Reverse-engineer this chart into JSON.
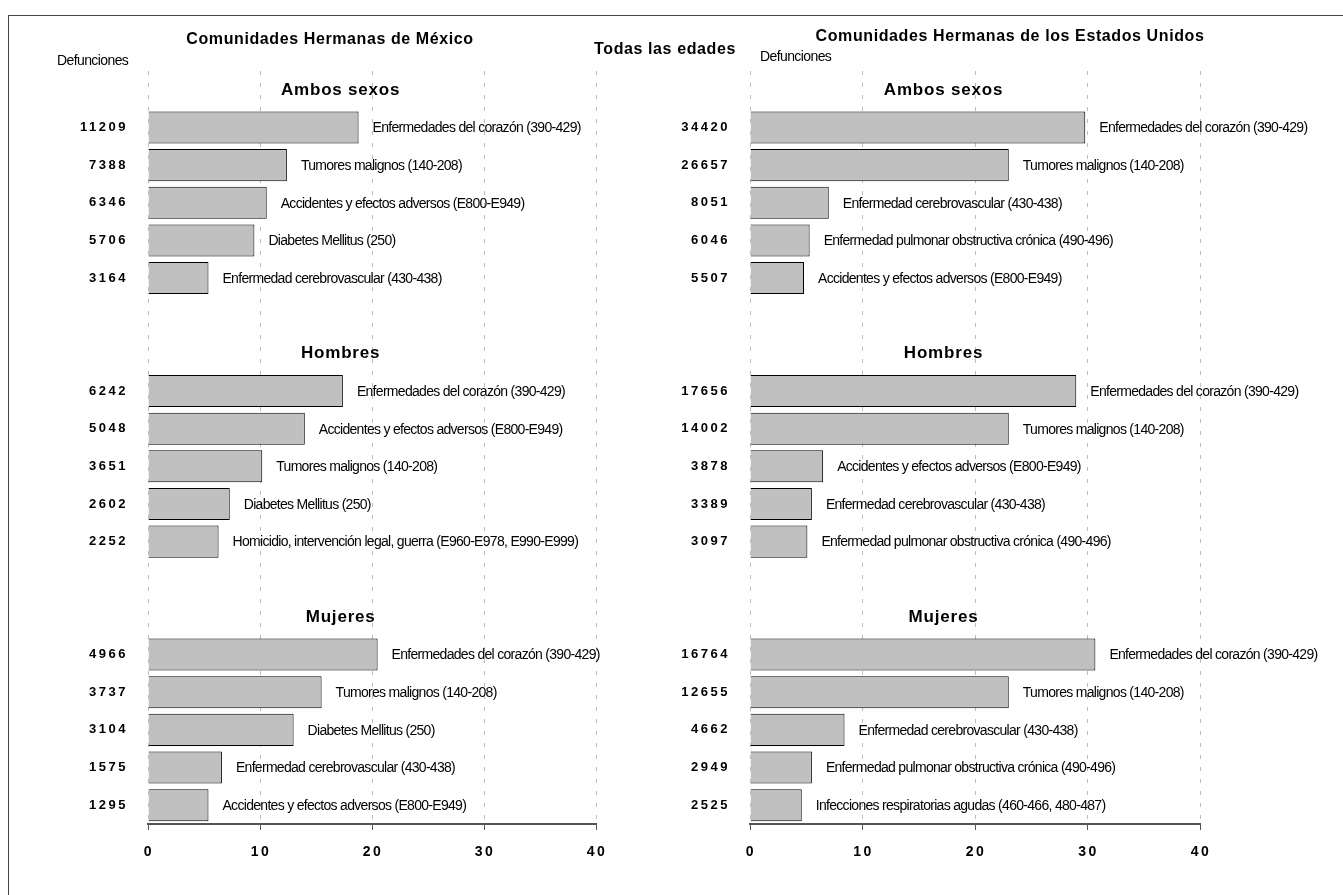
{
  "chart_data": [
    {
      "type": "bar",
      "orientation": "horizontal",
      "title": "Comunidades Hermanas de México",
      "ylabel": "Defunciones",
      "color": "#c0c0c0",
      "xlim": [
        0,
        40
      ],
      "xticks": [
        0,
        10,
        20,
        30,
        40
      ],
      "grid": "x",
      "legend": false,
      "categories": [
        "Ambos sexos",
        "11209",
        "7388",
        "6346",
        "5706",
        "3164",
        null,
        "Hombres",
        "6242",
        "5048",
        "3651",
        "2602",
        "2252",
        null,
        "Mujeres",
        "4966",
        "3737",
        "3104",
        "1575",
        "1295"
      ],
      "values": [
        null,
        18.8,
        12.4,
        10.6,
        9.5,
        5.4,
        null,
        null,
        17.4,
        14.0,
        10.2,
        7.3,
        6.3,
        null,
        null,
        20.5,
        15.5,
        13.0,
        6.6,
        5.4
      ],
      "annotations": [
        "Todas las edades",
        {
          "text": "Enfermedades del corazón (390-429)",
          "x": 18.8,
          "y": "11209"
        },
        {
          "text": "Tumores malignos (140-208)",
          "x": 12.4,
          "y": "7388"
        },
        {
          "text": "Accidentes y efectos adversos (E800-E949)",
          "x": 10.6,
          "y": "6346"
        },
        {
          "text": "Diabetes Mellitus (250)",
          "x": 9.5,
          "y": "5706"
        },
        {
          "text": "Enfermedad cerebrovascular (430-438)",
          "x": 5.4,
          "y": "3164"
        },
        {
          "text": "Enfermedades del corazón (390-429)",
          "x": 17.4,
          "y": "6242"
        },
        {
          "text": "Accidentes y efectos adversos (E800-E949)",
          "x": 14.0,
          "y": "5048"
        },
        {
          "text": "Tumores malignos (140-208)",
          "x": 10.2,
          "y": "3651"
        },
        {
          "text": "Diabetes Mellitus (250)",
          "x": 7.3,
          "y": "2602"
        },
        {
          "text": "Homicidio, intervención legal, guerra (E960-E978, E990-E999)",
          "x": 6.3,
          "y": "2252"
        },
        {
          "text": "Enfermedades del corazón (390-429)",
          "x": 20.5,
          "y": "4966"
        },
        {
          "text": "Tumores malignos (140-208)",
          "x": 15.5,
          "y": "3737"
        },
        {
          "text": "Diabetes Mellitus (250)",
          "x": 13.0,
          "y": "3104"
        },
        {
          "text": "Enfermedad cerebrovascular (430-438)",
          "x": 6.6,
          "y": "1575"
        },
        {
          "text": "Accidentes y efectos adversos (E800-E949)",
          "x": 5.4,
          "y": "1295"
        }
      ]
    },
    {
      "type": "bar",
      "orientation": "horizontal",
      "title": "Comunidades Hermanas de los Estados Unidos",
      "ylabel": "Defunciones",
      "color": "#c0c0c0",
      "xlim": [
        0,
        40
      ],
      "xticks": [
        0,
        10,
        20,
        30,
        40
      ],
      "grid": "x",
      "legend": false,
      "categories": [
        "Ambos sexos",
        "34420",
        "26657",
        "8051",
        "6046",
        "5507",
        null,
        "Hombres",
        "17656",
        "14002",
        "3878",
        "3389",
        "3097",
        null,
        "Mujeres",
        "16764",
        "12655",
        "4662",
        "2949",
        "2525"
      ],
      "values": [
        null,
        29.8,
        23.0,
        7.0,
        5.3,
        4.8,
        null,
        null,
        29.0,
        23.0,
        6.5,
        5.5,
        5.1,
        null,
        null,
        30.7,
        23.0,
        8.4,
        5.5,
        4.6
      ],
      "annotations": [
        {
          "text": "Enfermedades del corazón (390-429)",
          "x": 29.8,
          "y": "34420"
        },
        {
          "text": "Tumores malignos (140-208)",
          "x": 23.0,
          "y": "26657"
        },
        {
          "text": "Enfermedad cerebrovascular (430-438)",
          "x": 7.0,
          "y": "8051"
        },
        {
          "text": "Enfermedad pulmonar obstructiva crónica (490-496)",
          "x": 5.3,
          "y": "6046"
        },
        {
          "text": "Accidentes y efectos adversos (E800-E949)",
          "x": 4.8,
          "y": "5507"
        },
        {
          "text": "Enfermedades del corazón (390-429)",
          "x": 29.0,
          "y": "17656"
        },
        {
          "text": "Tumores malignos (140-208)",
          "x": 23.0,
          "y": "14002"
        },
        {
          "text": "Accidentes y efectos adversos (E800-E949)",
          "x": 6.5,
          "y": "3878"
        },
        {
          "text": "Enfermedad cerebrovascular (430-438)",
          "x": 5.5,
          "y": "3389"
        },
        {
          "text": "Enfermedad pulmonar obstructiva crónica (490-496)",
          "x": 5.1,
          "y": "3097"
        },
        {
          "text": "Enfermedades del corazón (390-429)",
          "x": 30.7,
          "y": "16764"
        },
        {
          "text": "Tumores malignos (140-208)",
          "x": 23.0,
          "y": "12655"
        },
        {
          "text": "Enfermedad cerebrovascular (430-438)",
          "x": 8.4,
          "y": "4662"
        },
        {
          "text": "Enfermedad pulmonar obstructiva crónica (490-496)",
          "x": 5.5,
          "y": "2949"
        },
        {
          "text": "Infecciones respiratorias agudas (460-466, 480-487)",
          "x": 4.6,
          "y": "2525"
        }
      ]
    }
  ]
}
